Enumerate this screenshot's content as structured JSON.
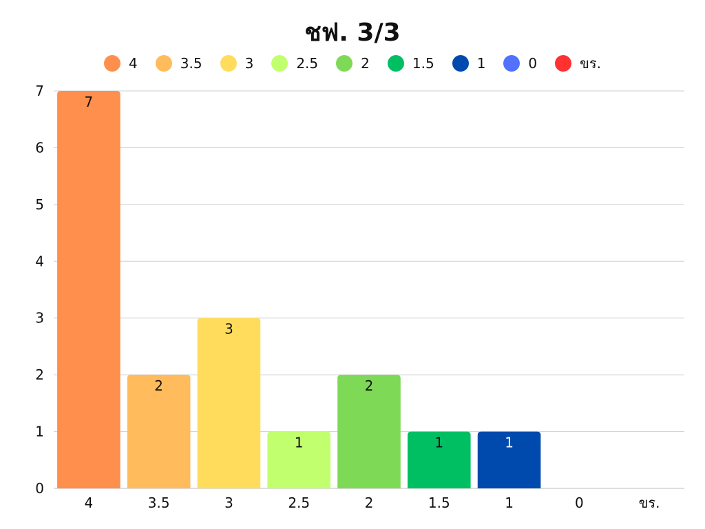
{
  "chart_data": {
    "type": "bar",
    "title": "ชฟ. 3/3",
    "categories": [
      "4",
      "3.5",
      "3",
      "2.5",
      "2",
      "1.5",
      "1",
      "0",
      "ขร."
    ],
    "values": [
      7,
      2,
      3,
      1,
      2,
      1,
      1,
      0,
      0
    ],
    "colors": [
      "#ff8f4d",
      "#ffbb5c",
      "#ffdc5c",
      "#c2ff6e",
      "#7ed957",
      "#00bf63",
      "#004aad",
      "#5271ff",
      "#ff3131"
    ],
    "legend": [
      "4",
      "3.5",
      "3",
      "2.5",
      "2",
      "1.5",
      "1",
      "0",
      "ขร."
    ],
    "legend_position": "top",
    "ylim": [
      0,
      7
    ],
    "y_ticks": [
      "0",
      "1",
      "2",
      "3",
      "4",
      "5",
      "6",
      "7"
    ],
    "grid": true,
    "data_labels": true,
    "xlabel": "",
    "ylabel": ""
  }
}
